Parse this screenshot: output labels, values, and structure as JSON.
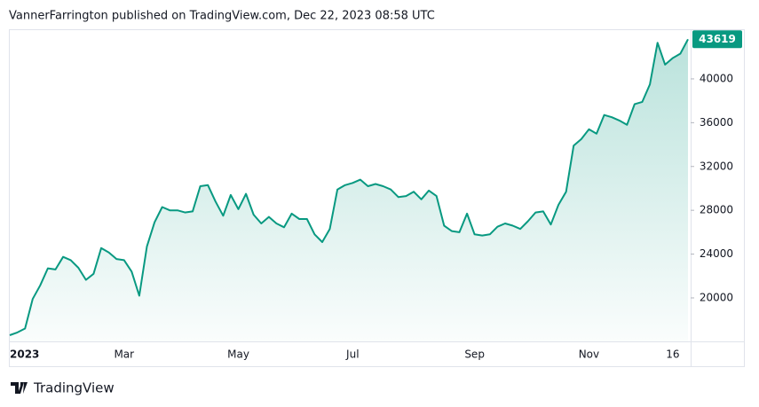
{
  "header": "VannerFarrington published on TradingView.com, Dec 22, 2023 08:58 UTC",
  "footer": "TradingView",
  "chart_data": {
    "type": "area",
    "categories": [
      "2023",
      null,
      null,
      null,
      null,
      null,
      null,
      null,
      null,
      null,
      null,
      null,
      null,
      null,
      null,
      "Mar",
      null,
      null,
      null,
      null,
      null,
      null,
      null,
      null,
      null,
      null,
      null,
      null,
      null,
      null,
      "May",
      null,
      null,
      null,
      null,
      null,
      null,
      null,
      null,
      null,
      null,
      null,
      null,
      null,
      null,
      "Jul",
      null,
      null,
      null,
      null,
      null,
      null,
      null,
      null,
      null,
      null,
      null,
      null,
      null,
      null,
      null,
      "Sep",
      null,
      null,
      null,
      null,
      null,
      null,
      null,
      null,
      null,
      null,
      null,
      null,
      null,
      null,
      "Nov",
      null,
      null,
      null,
      null,
      null,
      null,
      null,
      null,
      null,
      null,
      "16",
      null,
      null
    ],
    "series": [
      {
        "color": "#089981",
        "values": [
          16600,
          16850,
          17200,
          19900,
          21150,
          22700,
          22600,
          23750,
          23450,
          22750,
          21650,
          22200,
          24550,
          24150,
          23550,
          23450,
          22400,
          20200,
          24700,
          26900,
          28300,
          28000,
          28000,
          27800,
          27900,
          30200,
          30300,
          28800,
          27500,
          29400,
          28100,
          29500,
          27600,
          26800,
          27400,
          26800,
          26450,
          27700,
          27200,
          27200,
          25800,
          25100,
          26300,
          29900,
          30300,
          30500,
          30800,
          30200,
          30400,
          30200,
          29900,
          29200,
          29300,
          29700,
          29000,
          29800,
          29300,
          26600,
          26100,
          26000,
          27700,
          25800,
          25700,
          25800,
          26500,
          26800,
          26600,
          26300,
          27000,
          27800,
          27900,
          26700,
          28500,
          29700,
          33900,
          34500,
          35400,
          35000,
          36700,
          36500,
          36200,
          35800,
          37700,
          37900,
          39500,
          43300,
          41300,
          41900,
          42300,
          43619
        ]
      }
    ],
    "ylim": [
      16030,
      44530
    ],
    "yticks": [
      20000,
      24000,
      28000,
      32000,
      36000,
      40000
    ]
  }
}
